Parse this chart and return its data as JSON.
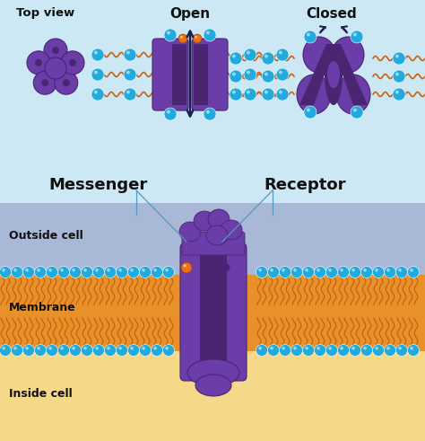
{
  "bg_top": "#cce8f5",
  "bg_middle": "#aab8d8",
  "bg_membrane_orange": "#e8902a",
  "bg_bottom": "#f5d888",
  "purple_dark": "#4a2572",
  "purple_mid": "#6b3da8",
  "purple_light": "#9b6fd4",
  "blue_ball": "#22aadd",
  "orange_ball": "#e87018",
  "orange_chain": "#cc6010",
  "dark_navy": "#1a2050",
  "text_color": "#111111",
  "line_color": "#5599bb",
  "title_top_view": "Top view",
  "title_open": "Open",
  "title_closed": "Closed",
  "label_messenger": "Messenger",
  "label_receptor": "Receptor",
  "label_outside": "Outside cell",
  "label_membrane": "Membrane",
  "label_inside": "Inside cell"
}
